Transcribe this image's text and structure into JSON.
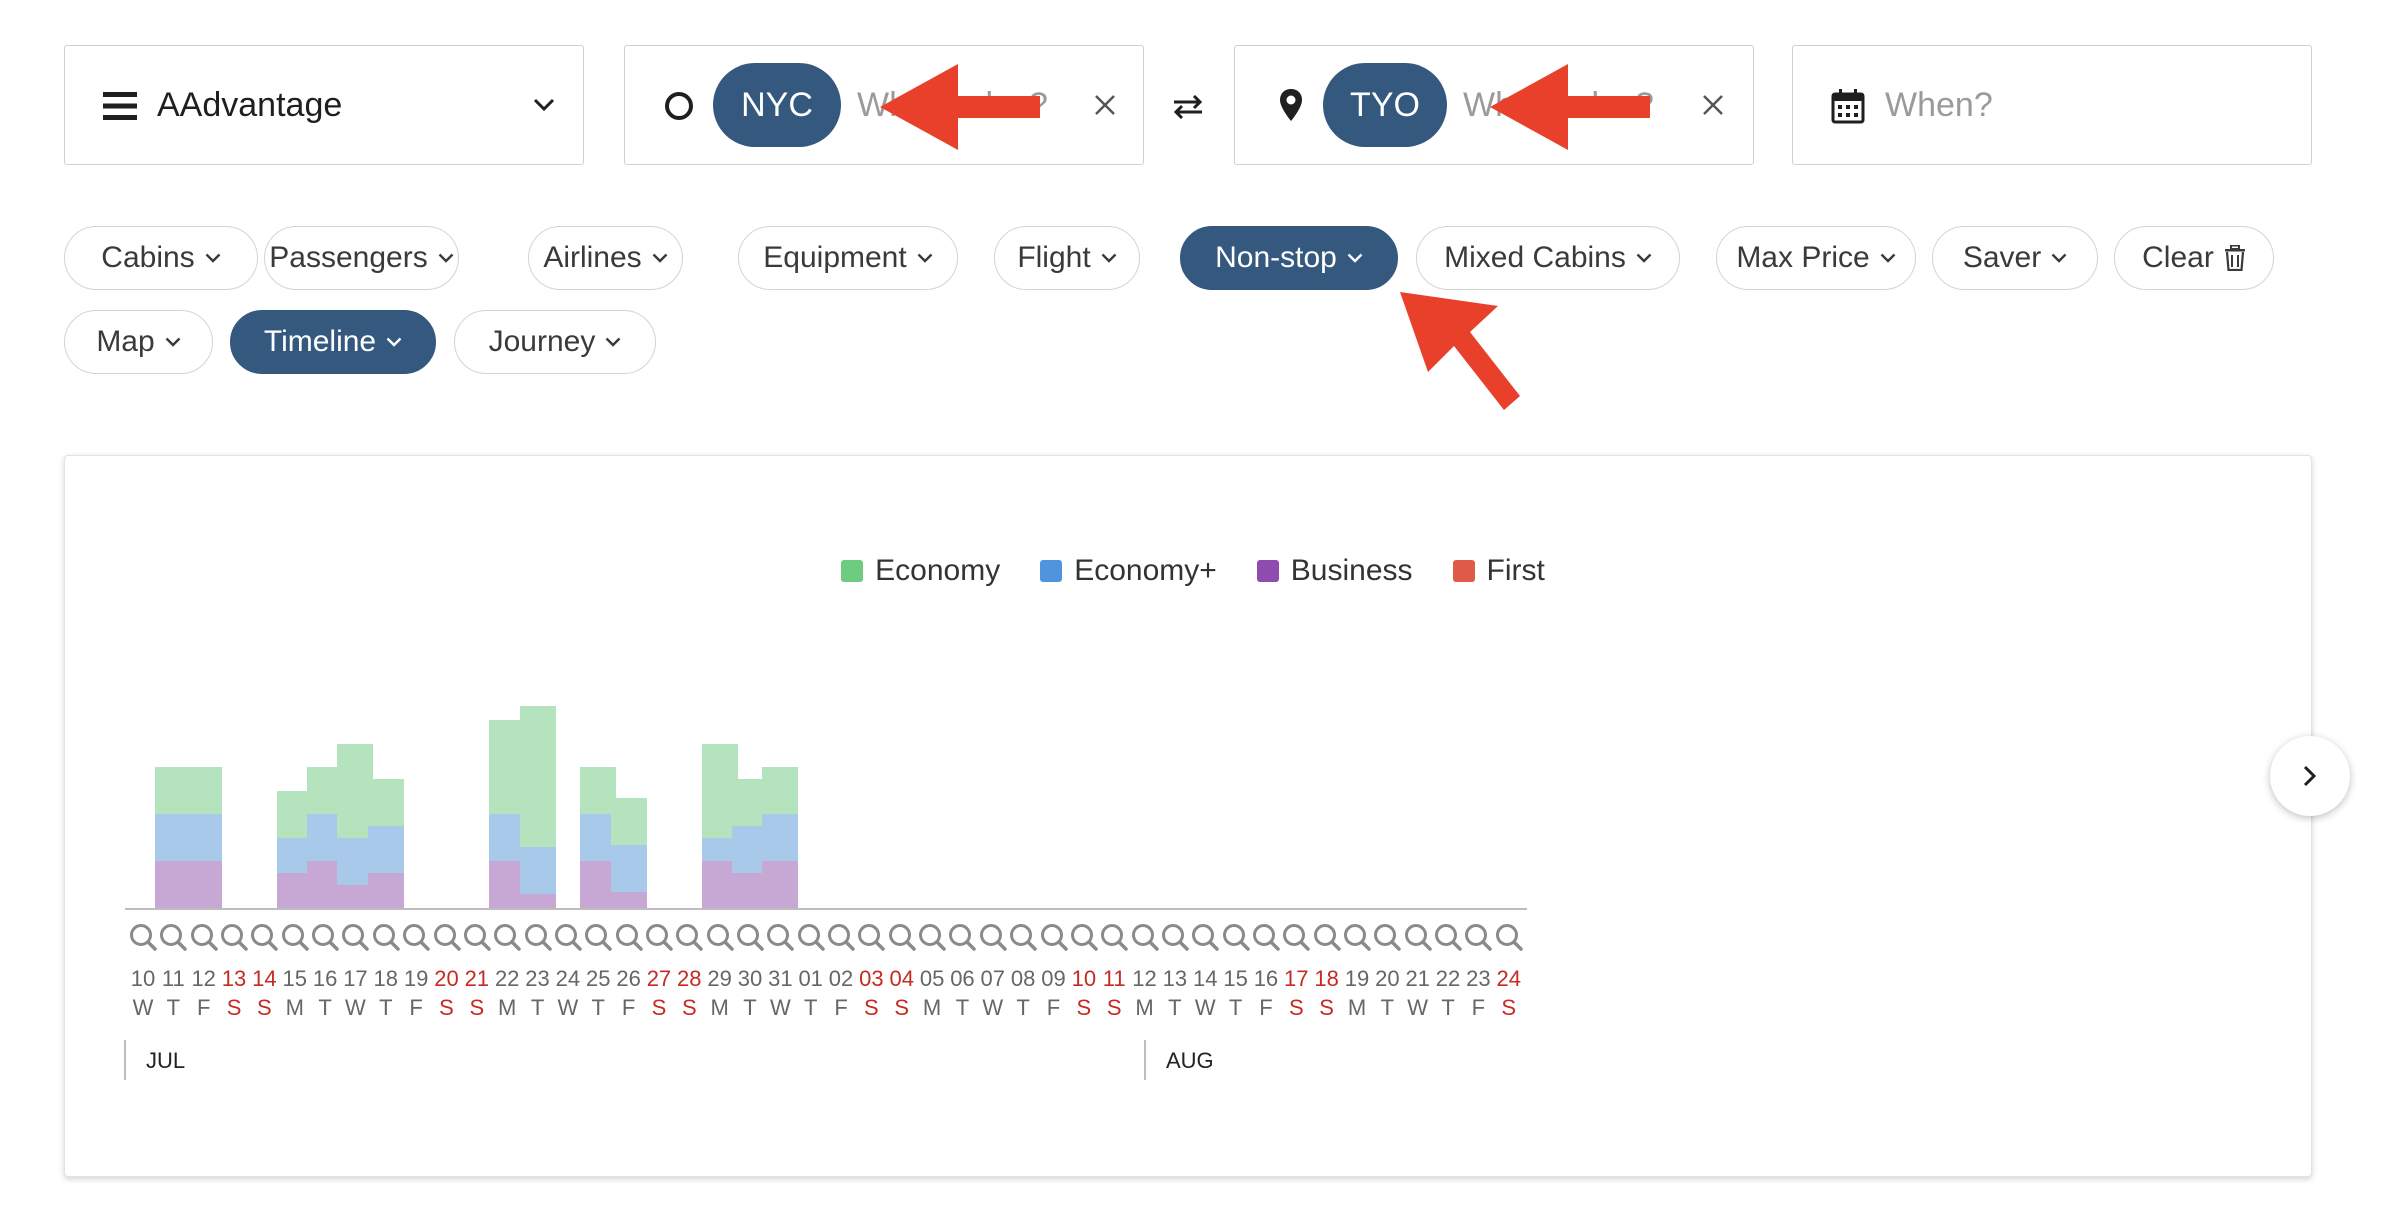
{
  "program": {
    "label": "AAdvantage"
  },
  "origin": {
    "code": "NYC",
    "placeholder": "Where else?"
  },
  "destination": {
    "code": "TYO",
    "placeholder": "Where else?"
  },
  "date": {
    "placeholder": "When?"
  },
  "filters": [
    {
      "label": "Cabins",
      "active": false
    },
    {
      "label": "Passengers",
      "active": false
    },
    {
      "label": "Airlines",
      "active": false
    },
    {
      "label": "Equipment",
      "active": false
    },
    {
      "label": "Flight",
      "active": false
    },
    {
      "label": "Non-stop",
      "active": true
    },
    {
      "label": "Mixed Cabins",
      "active": false
    },
    {
      "label": "Max Price",
      "active": false
    },
    {
      "label": "Saver",
      "active": false
    },
    {
      "label": "Clear",
      "active": false
    },
    {
      "label": "Map",
      "active": false
    },
    {
      "label": "Timeline",
      "active": true
    },
    {
      "label": "Journey",
      "active": false
    }
  ],
  "colors": {
    "accent": "#35587f",
    "economy": "#b4e3bd",
    "economy_plus": "#a9c9ea",
    "business": "#c7a8d4",
    "first": "#e05a48",
    "weekend": "#c62b23",
    "arrow": "#e8402b"
  },
  "chart_data": {
    "type": "bar",
    "stacked": true,
    "title": "",
    "legend": [
      "Economy",
      "Economy+",
      "Business",
      "First"
    ],
    "legend_position": "top-center",
    "months": [
      {
        "label": "JUL",
        "start_index": 0
      },
      {
        "label": "AUG",
        "start_index": 22
      }
    ],
    "days": [
      {
        "d": "10",
        "w": "W",
        "weekend": false
      },
      {
        "d": "11",
        "w": "T",
        "weekend": false
      },
      {
        "d": "12",
        "w": "F",
        "weekend": false
      },
      {
        "d": "13",
        "w": "S",
        "weekend": true
      },
      {
        "d": "14",
        "w": "S",
        "weekend": true
      },
      {
        "d": "15",
        "w": "M",
        "weekend": false
      },
      {
        "d": "16",
        "w": "T",
        "weekend": false
      },
      {
        "d": "17",
        "w": "W",
        "weekend": false
      },
      {
        "d": "18",
        "w": "T",
        "weekend": false
      },
      {
        "d": "19",
        "w": "F",
        "weekend": false
      },
      {
        "d": "20",
        "w": "S",
        "weekend": true
      },
      {
        "d": "21",
        "w": "S",
        "weekend": true
      },
      {
        "d": "22",
        "w": "M",
        "weekend": false
      },
      {
        "d": "23",
        "w": "T",
        "weekend": false
      },
      {
        "d": "24",
        "w": "W",
        "weekend": false
      },
      {
        "d": "25",
        "w": "T",
        "weekend": false
      },
      {
        "d": "26",
        "w": "F",
        "weekend": false
      },
      {
        "d": "27",
        "w": "S",
        "weekend": true
      },
      {
        "d": "28",
        "w": "S",
        "weekend": true
      },
      {
        "d": "29",
        "w": "M",
        "weekend": false
      },
      {
        "d": "30",
        "w": "T",
        "weekend": false
      },
      {
        "d": "31",
        "w": "W",
        "weekend": false
      },
      {
        "d": "01",
        "w": "T",
        "weekend": false
      },
      {
        "d": "02",
        "w": "F",
        "weekend": false
      },
      {
        "d": "03",
        "w": "S",
        "weekend": true
      },
      {
        "d": "04",
        "w": "S",
        "weekend": true
      },
      {
        "d": "05",
        "w": "M",
        "weekend": false
      },
      {
        "d": "06",
        "w": "T",
        "weekend": false
      },
      {
        "d": "07",
        "w": "W",
        "weekend": false
      },
      {
        "d": "08",
        "w": "T",
        "weekend": false
      },
      {
        "d": "09",
        "w": "F",
        "weekend": false
      },
      {
        "d": "10",
        "w": "S",
        "weekend": true
      },
      {
        "d": "11",
        "w": "S",
        "weekend": true
      },
      {
        "d": "12",
        "w": "M",
        "weekend": false
      },
      {
        "d": "13",
        "w": "T",
        "weekend": false
      },
      {
        "d": "14",
        "w": "W",
        "weekend": false
      },
      {
        "d": "15",
        "w": "T",
        "weekend": false
      },
      {
        "d": "16",
        "w": "F",
        "weekend": false
      },
      {
        "d": "17",
        "w": "S",
        "weekend": true
      },
      {
        "d": "18",
        "w": "S",
        "weekend": true
      },
      {
        "d": "19",
        "w": "M",
        "weekend": false
      },
      {
        "d": "20",
        "w": "T",
        "weekend": false
      },
      {
        "d": "21",
        "w": "W",
        "weekend": false
      },
      {
        "d": "22",
        "w": "T",
        "weekend": false
      },
      {
        "d": "23",
        "w": "F",
        "weekend": false
      },
      {
        "d": "24",
        "w": "S",
        "weekend": true
      }
    ],
    "series": [
      {
        "name": "Business",
        "values": [
          0,
          2,
          2,
          0,
          0,
          1.5,
          2,
          1,
          1.5,
          0,
          0,
          0,
          2,
          0.6,
          0,
          2,
          0.7,
          0,
          0,
          2,
          1.5,
          2,
          0,
          0,
          0,
          0,
          0,
          0,
          0,
          0,
          0,
          0,
          0,
          0,
          0,
          0,
          0,
          0,
          0,
          0,
          0,
          0,
          0,
          0,
          0,
          0
        ]
      },
      {
        "name": "Economy+",
        "values": [
          0,
          2,
          2,
          0,
          0,
          1.5,
          2,
          2,
          2,
          0,
          0,
          0,
          2,
          2,
          0,
          2,
          2,
          0,
          0,
          1,
          2,
          2,
          0,
          0,
          0,
          0,
          0,
          0,
          0,
          0,
          0,
          0,
          0,
          0,
          0,
          0,
          0,
          0,
          0,
          0,
          0,
          0,
          0,
          0,
          0,
          0
        ]
      },
      {
        "name": "Economy",
        "values": [
          0,
          2,
          2,
          0,
          0,
          2,
          2,
          4,
          2,
          0,
          0,
          0,
          4,
          6,
          0,
          2,
          2,
          0,
          0,
          4,
          2,
          2,
          0,
          0,
          0,
          0,
          0,
          0,
          0,
          0,
          0,
          0,
          0,
          0,
          0,
          0,
          0,
          0,
          0,
          0,
          0,
          0,
          0,
          0,
          0,
          0
        ]
      },
      {
        "name": "First",
        "values": [
          0,
          0,
          0,
          0,
          0,
          0,
          0,
          0,
          0,
          0,
          0,
          0,
          0,
          0,
          0,
          0,
          0,
          0,
          0,
          0,
          0,
          0,
          0,
          0,
          0,
          0,
          0,
          0,
          0,
          0,
          0,
          0,
          0,
          0,
          0,
          0,
          0,
          0,
          0,
          0,
          0,
          0,
          0,
          0,
          0,
          0
        ]
      }
    ],
    "ylim": [
      0,
      9
    ]
  }
}
